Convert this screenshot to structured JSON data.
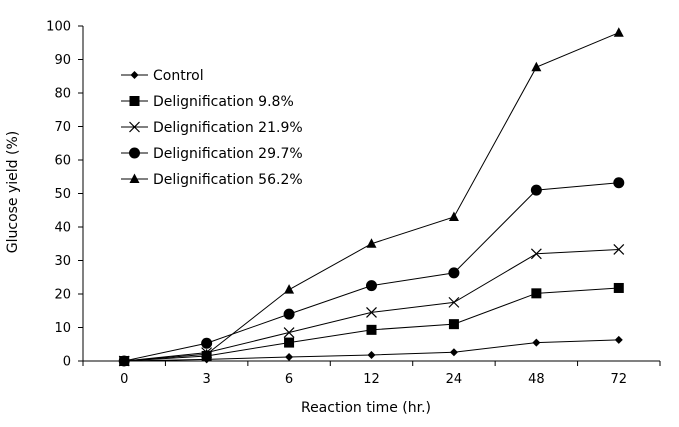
{
  "chart_data": {
    "type": "line",
    "categories": [
      "0",
      "3",
      "6",
      "12",
      "24",
      "48",
      "72"
    ],
    "xlabel": "Reaction time (hr.)",
    "ylabel": "Glucose yield (%)",
    "ylim": [
      0,
      100
    ],
    "yticks": [
      0,
      10,
      20,
      30,
      40,
      50,
      60,
      70,
      80,
      90,
      100
    ],
    "grid": false,
    "legend_position": "top-left",
    "series": [
      {
        "name": "Control",
        "marker": "diamond",
        "values": [
          0,
          0.5,
          1.2,
          1.8,
          2.6,
          5.5,
          6.3
        ]
      },
      {
        "name": "Delignification 9.8%",
        "marker": "square",
        "values": [
          0,
          1.5,
          5.5,
          9.3,
          11.0,
          20.2,
          21.8
        ]
      },
      {
        "name": "Delignification 21.9%",
        "marker": "x",
        "values": [
          0,
          2.5,
          8.5,
          14.5,
          17.5,
          32.0,
          33.3
        ]
      },
      {
        "name": "Delignification 29.7%",
        "marker": "circle",
        "values": [
          0,
          5.3,
          14.0,
          22.5,
          26.3,
          51.0,
          53.2
        ]
      },
      {
        "name": "Delignification 56.2%",
        "marker": "triangle",
        "values": [
          0,
          2.0,
          21.3,
          35.0,
          43.0,
          87.7,
          98.0
        ]
      }
    ]
  }
}
